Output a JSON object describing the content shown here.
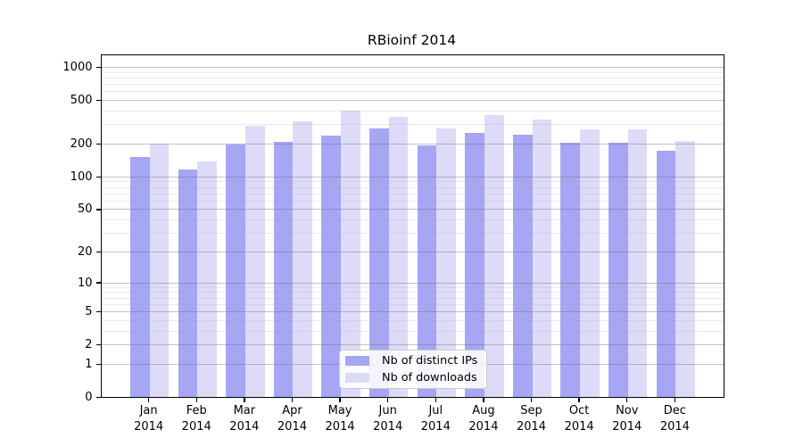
{
  "chart_data": {
    "type": "bar",
    "title": "RBioinf 2014",
    "categories": [
      "Jan",
      "Feb",
      "Mar",
      "Apr",
      "May",
      "Jun",
      "Jul",
      "Aug",
      "Sep",
      "Oct",
      "Nov",
      "Dec"
    ],
    "year_label": "2014",
    "series": [
      {
        "name": "Nb of distinct IPs",
        "color": "#a6a6f5",
        "values": [
          150,
          116,
          195,
          208,
          235,
          276,
          192,
          250,
          240,
          205,
          202,
          171
        ]
      },
      {
        "name": "Nb of downloads",
        "color": "#dcdcf9",
        "values": [
          198,
          136,
          292,
          320,
          398,
          350,
          273,
          365,
          332,
          268,
          271,
          211
        ]
      }
    ],
    "xlabel": "",
    "ylabel": "",
    "y_ticks": [
      0,
      1,
      2,
      5,
      10,
      20,
      50,
      100,
      200,
      500,
      1000
    ],
    "y_minor_gridlines": [
      3,
      4,
      6,
      7,
      8,
      9,
      30,
      40,
      60,
      70,
      80,
      90,
      300,
      400,
      600,
      700,
      800,
      900
    ],
    "y_scale": "log10(value+1)",
    "ylim": [
      0,
      1000
    ],
    "grid": "on",
    "legend_position": "bottom-center"
  },
  "colors": {
    "background": "#ffffff",
    "spine": "#000000",
    "major_grid": "#c3c3c3",
    "minor_grid": "#e6e6e6",
    "legend_border": "#cccccc",
    "text": "#000000"
  }
}
